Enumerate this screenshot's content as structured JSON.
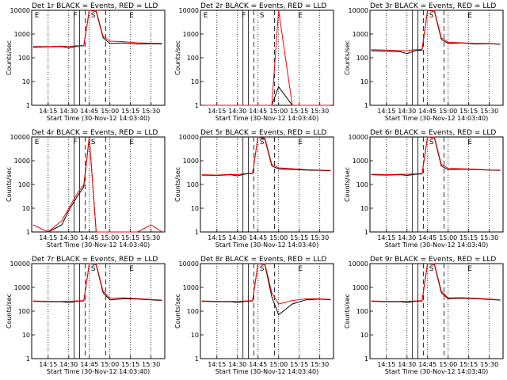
{
  "colors": {
    "events": "#000000",
    "lld": "#ff0000",
    "background": "#ffffff"
  },
  "common": {
    "ylabel": "Counts/sec",
    "xlabel": "Start Time (30-Nov-12 14:03:40)",
    "x_tick_labels": [
      "14:15",
      "14:30",
      "14:45",
      "15:00",
      "15:15",
      "15:30"
    ],
    "y_tick_labels": [
      "1",
      "10",
      "100",
      "1000",
      "10000"
    ],
    "y_log_scale": true
  },
  "chart_data": [
    {
      "type": "line",
      "title": "Det 1r BLACK = Events, RED = LLD",
      "markers": [
        {
          "label": "E"
        },
        {
          "label": "F"
        },
        {
          "label": "S"
        },
        {
          "label": "E"
        }
      ],
      "series": [
        {
          "name": "Events",
          "color": "#000000",
          "x": [
            "14:04",
            "14:15",
            "14:25",
            "14:30",
            "14:36",
            "14:41",
            "14:45",
            "14:50",
            "14:55",
            "15:00",
            "15:10",
            "15:20",
            "15:30",
            "15:38"
          ],
          "y": [
            280,
            290,
            300,
            260,
            310,
            320,
            12000,
            9000,
            700,
            400,
            420,
            380,
            390,
            380
          ]
        },
        {
          "name": "LLD",
          "color": "#ff0000",
          "x": [
            "14:04",
            "14:15",
            "14:25",
            "14:30",
            "14:36",
            "14:41",
            "14:45",
            "14:50",
            "14:55",
            "15:00",
            "15:10",
            "15:20",
            "15:30",
            "15:38"
          ],
          "y": [
            300,
            300,
            310,
            300,
            320,
            330,
            12000,
            10000,
            800,
            500,
            480,
            430,
            410,
            400
          ]
        }
      ]
    },
    {
      "type": "line",
      "title": "Det 2r BLACK = Events, RED = LLD",
      "markers": [
        {
          "label": "E"
        },
        {
          "label": "F"
        },
        {
          "label": "S"
        },
        {
          "label": "E"
        }
      ],
      "series": [
        {
          "name": "Events",
          "color": "#000000",
          "x": [
            "14:04",
            "14:15",
            "14:25",
            "14:30",
            "14:36",
            "14:41",
            "14:45",
            "14:50",
            "14:55",
            "15:00",
            "15:10",
            "15:20",
            "15:30",
            "15:38"
          ],
          "y": [
            0,
            0,
            0,
            0,
            0,
            0,
            0,
            0,
            0,
            6,
            0,
            0,
            0,
            0
          ]
        },
        {
          "name": "LLD",
          "color": "#ff0000",
          "x": [
            "14:04",
            "14:15",
            "14:25",
            "14:30",
            "14:36",
            "14:41",
            "14:45",
            "14:50",
            "14:55",
            "15:00",
            "15:10",
            "15:20",
            "15:30",
            "15:38"
          ],
          "y": [
            0,
            0,
            0,
            0,
            0,
            0,
            0,
            0,
            0,
            12000,
            0,
            0,
            0,
            0
          ]
        }
      ]
    },
    {
      "type": "line",
      "title": "Det 3r BLACK = Events, RED = LLD",
      "markers": [
        {
          "label": "S"
        },
        {
          "label": "E"
        }
      ],
      "series": [
        {
          "name": "Events",
          "color": "#000000",
          "x": [
            "14:04",
            "14:15",
            "14:25",
            "14:30",
            "14:36",
            "14:41",
            "14:45",
            "14:50",
            "14:55",
            "15:00",
            "15:10",
            "15:20",
            "15:30",
            "15:38"
          ],
          "y": [
            200,
            190,
            180,
            150,
            200,
            210,
            11000,
            9000,
            600,
            400,
            420,
            380,
            390,
            370
          ]
        },
        {
          "name": "LLD",
          "color": "#ff0000",
          "x": [
            "14:04",
            "14:15",
            "14:25",
            "14:30",
            "14:36",
            "14:41",
            "14:45",
            "14:50",
            "14:55",
            "15:00",
            "15:10",
            "15:20",
            "15:30",
            "15:38"
          ],
          "y": [
            220,
            210,
            200,
            200,
            220,
            230,
            11000,
            10000,
            700,
            450,
            430,
            400,
            400,
            380
          ]
        }
      ]
    },
    {
      "type": "line",
      "title": "Det 4r BLACK = Events, RED = LLD",
      "markers": [
        {
          "label": "E"
        },
        {
          "label": "F"
        },
        {
          "label": "S"
        },
        {
          "label": "E"
        }
      ],
      "series": [
        {
          "name": "Events",
          "color": "#000000",
          "x": [
            "14:04",
            "14:15",
            "14:25",
            "14:30",
            "14:36",
            "14:41",
            "14:45",
            "14:50",
            "14:55",
            "15:00",
            "15:10",
            "15:20",
            "15:30",
            "15:38"
          ],
          "y": [
            1,
            1,
            2,
            8,
            30,
            80,
            12000,
            0,
            0,
            0,
            0,
            0,
            0,
            0
          ]
        },
        {
          "name": "LLD",
          "color": "#ff0000",
          "x": [
            "14:04",
            "14:15",
            "14:25",
            "14:30",
            "14:36",
            "14:41",
            "14:45",
            "14:50",
            "14:55",
            "15:00",
            "15:10",
            "15:20",
            "15:30",
            "15:38"
          ],
          "y": [
            2,
            1,
            3,
            10,
            40,
            100,
            12000,
            0,
            0,
            0,
            0,
            1,
            2,
            1
          ]
        }
      ]
    },
    {
      "type": "line",
      "title": "Det 5r BLACK = Events, RED = LLD",
      "markers": [
        {
          "label": "S"
        },
        {
          "label": "E"
        }
      ],
      "series": [
        {
          "name": "Events",
          "color": "#000000",
          "x": [
            "14:04",
            "14:15",
            "14:25",
            "14:30",
            "14:36",
            "14:41",
            "14:45",
            "14:50",
            "14:55",
            "15:00",
            "15:10",
            "15:20",
            "15:30",
            "15:38"
          ],
          "y": [
            250,
            240,
            260,
            230,
            280,
            290,
            10000,
            8000,
            600,
            450,
            430,
            400,
            390,
            380
          ]
        },
        {
          "name": "LLD",
          "color": "#ff0000",
          "x": [
            "14:04",
            "14:15",
            "14:25",
            "14:30",
            "14:36",
            "14:41",
            "14:45",
            "14:50",
            "14:55",
            "15:00",
            "15:10",
            "15:20",
            "15:30",
            "15:38"
          ],
          "y": [
            260,
            250,
            270,
            260,
            290,
            300,
            11000,
            9000,
            700,
            500,
            460,
            420,
            400,
            390
          ]
        }
      ]
    },
    {
      "type": "line",
      "title": "Det 6r BLACK = Events, RED = LLD",
      "markers": [
        {
          "label": "S"
        },
        {
          "label": "E"
        }
      ],
      "series": [
        {
          "name": "Events",
          "color": "#000000",
          "x": [
            "14:04",
            "14:15",
            "14:25",
            "14:30",
            "14:36",
            "14:41",
            "14:45",
            "14:50",
            "14:55",
            "15:00",
            "15:10",
            "15:20",
            "15:30",
            "15:38"
          ],
          "y": [
            260,
            250,
            260,
            240,
            270,
            280,
            11000,
            9000,
            600,
            420,
            440,
            420,
            400,
            390
          ]
        },
        {
          "name": "LLD",
          "color": "#ff0000",
          "x": [
            "14:04",
            "14:15",
            "14:25",
            "14:30",
            "14:36",
            "14:41",
            "14:45",
            "14:50",
            "14:55",
            "15:00",
            "15:10",
            "15:20",
            "15:30",
            "15:38"
          ],
          "y": [
            270,
            260,
            270,
            270,
            280,
            290,
            11000,
            10000,
            700,
            480,
            460,
            440,
            410,
            400
          ]
        }
      ]
    },
    {
      "type": "line",
      "title": "Det 7r BLACK = Events, RED = LLD",
      "markers": [
        {
          "label": "S"
        },
        {
          "label": "E"
        }
      ],
      "series": [
        {
          "name": "Events",
          "color": "#000000",
          "x": [
            "14:04",
            "14:15",
            "14:25",
            "14:30",
            "14:36",
            "14:41",
            "14:45",
            "14:50",
            "14:55",
            "15:00",
            "15:10",
            "15:20",
            "15:30",
            "15:38"
          ],
          "y": [
            260,
            250,
            250,
            230,
            260,
            270,
            11000,
            9000,
            600,
            300,
            330,
            320,
            300,
            280
          ]
        },
        {
          "name": "LLD",
          "color": "#ff0000",
          "x": [
            "14:04",
            "14:15",
            "14:25",
            "14:30",
            "14:36",
            "14:41",
            "14:45",
            "14:50",
            "14:55",
            "15:00",
            "15:10",
            "15:20",
            "15:30",
            "15:38"
          ],
          "y": [
            270,
            260,
            260,
            260,
            270,
            280,
            11000,
            10000,
            700,
            350,
            360,
            340,
            310,
            290
          ]
        }
      ]
    },
    {
      "type": "line",
      "title": "Det 8r BLACK = Events, RED = LLD",
      "markers": [
        {
          "label": "S"
        },
        {
          "label": "E"
        }
      ],
      "series": [
        {
          "name": "Events",
          "color": "#000000",
          "x": [
            "14:04",
            "14:15",
            "14:25",
            "14:30",
            "14:36",
            "14:41",
            "14:45",
            "14:50",
            "14:55",
            "15:00",
            "15:10",
            "15:20",
            "15:30",
            "15:38"
          ],
          "y": [
            260,
            250,
            250,
            230,
            260,
            270,
            11000,
            9000,
            400,
            70,
            200,
            300,
            320,
            300
          ]
        },
        {
          "name": "LLD",
          "color": "#ff0000",
          "x": [
            "14:04",
            "14:15",
            "14:25",
            "14:30",
            "14:36",
            "14:41",
            "14:45",
            "14:50",
            "14:55",
            "15:00",
            "15:10",
            "15:20",
            "15:30",
            "15:38"
          ],
          "y": [
            270,
            260,
            260,
            260,
            270,
            280,
            11000,
            10000,
            600,
            200,
            280,
            330,
            330,
            310
          ]
        }
      ]
    },
    {
      "type": "line",
      "title": "Det 9r BLACK = Events, RED = LLD",
      "markers": [
        {
          "label": "S"
        },
        {
          "label": "E"
        }
      ],
      "series": [
        {
          "name": "Events",
          "color": "#000000",
          "x": [
            "14:04",
            "14:15",
            "14:25",
            "14:30",
            "14:36",
            "14:41",
            "14:45",
            "14:50",
            "14:55",
            "15:00",
            "15:10",
            "15:20",
            "15:30",
            "15:38"
          ],
          "y": [
            260,
            250,
            250,
            230,
            260,
            270,
            11000,
            9000,
            600,
            330,
            350,
            330,
            310,
            290
          ]
        },
        {
          "name": "LLD",
          "color": "#ff0000",
          "x": [
            "14:04",
            "14:15",
            "14:25",
            "14:30",
            "14:36",
            "14:41",
            "14:45",
            "14:50",
            "14:55",
            "15:00",
            "15:10",
            "15:20",
            "15:30",
            "15:38"
          ],
          "y": [
            270,
            260,
            260,
            260,
            270,
            280,
            11000,
            10000,
            700,
            360,
            370,
            350,
            320,
            300
          ]
        }
      ]
    }
  ]
}
